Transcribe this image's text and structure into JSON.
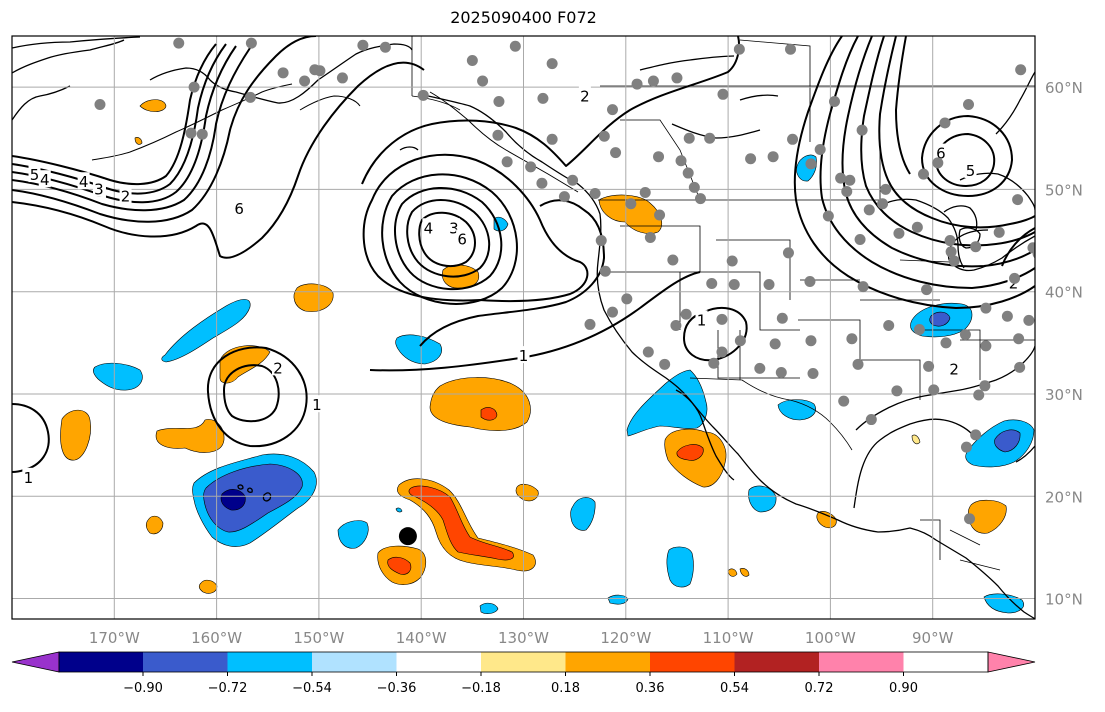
{
  "title": "2025090400 F072",
  "map": {
    "lon_range": [
      -180,
      -80
    ],
    "lat_range": [
      8,
      65
    ],
    "grid": true,
    "x_ticks": [
      {
        "lon": -170,
        "label": "170°W"
      },
      {
        "lon": -160,
        "label": "160°W"
      },
      {
        "lon": -150,
        "label": "150°W"
      },
      {
        "lon": -140,
        "label": "140°W"
      },
      {
        "lon": -130,
        "label": "130°W"
      },
      {
        "lon": -120,
        "label": "120°W"
      },
      {
        "lon": -110,
        "label": "110°W"
      },
      {
        "lon": -100,
        "label": "100°W"
      },
      {
        "lon": -90,
        "label": "90°W"
      }
    ],
    "y_ticks": [
      {
        "lat": 10,
        "label": "10°N"
      },
      {
        "lat": 20,
        "label": "20°N"
      },
      {
        "lat": 30,
        "label": "30°N"
      },
      {
        "lat": 40,
        "label": "40°N"
      },
      {
        "lat": 50,
        "label": "50°N"
      },
      {
        "lat": 60,
        "label": "60°N"
      }
    ],
    "contour_labels": [
      {
        "text": "5",
        "lon": -177.8,
        "lat": 51.5
      },
      {
        "text": "4",
        "lon": -176.8,
        "lat": 51.0
      },
      {
        "text": "3",
        "lon": -171.4,
        "lat": 49.9
      },
      {
        "text": "4",
        "lon": -173.0,
        "lat": 50.8
      },
      {
        "text": "3",
        "lon": -171.5,
        "lat": 50.1
      },
      {
        "text": "2",
        "lon": -168.9,
        "lat": 49.4
      },
      {
        "text": "6",
        "lon": -157.8,
        "lat": 48.2
      },
      {
        "text": "4",
        "lon": -139.3,
        "lat": 46.3
      },
      {
        "text": "3",
        "lon": -136.8,
        "lat": 46.3
      },
      {
        "text": "6",
        "lon": -136.0,
        "lat": 45.2
      },
      {
        "text": "2",
        "lon": -124.0,
        "lat": 59.2
      },
      {
        "text": "1",
        "lon": -130.0,
        "lat": 33.8
      },
      {
        "text": "1",
        "lon": -112.6,
        "lat": 37.3
      },
      {
        "text": "2",
        "lon": -154.0,
        "lat": 32.6
      },
      {
        "text": "1",
        "lon": -150.2,
        "lat": 29.0
      },
      {
        "text": "1",
        "lon": -178.4,
        "lat": 21.9
      },
      {
        "text": "6",
        "lon": -89.2,
        "lat": 53.6
      },
      {
        "text": "5",
        "lon": -86.3,
        "lat": 51.9
      },
      {
        "text": "2",
        "lon": -87.9,
        "lat": 32.5
      },
      {
        "text": "2",
        "lon": -82.1,
        "lat": 40.9
      }
    ],
    "storm_marker": {
      "lon": -141.3,
      "lat": 16.1
    },
    "station_color": "#808080",
    "stations": [
      [
        -163.7,
        64.3
      ],
      [
        -156.6,
        64.3
      ],
      [
        -153.5,
        61.4
      ],
      [
        -145.7,
        64.1
      ],
      [
        -143.5,
        63.9
      ],
      [
        -171.4,
        58.3
      ],
      [
        -162.2,
        60.0
      ],
      [
        -156.7,
        59.0
      ],
      [
        -151.4,
        60.6
      ],
      [
        -147.7,
        60.9
      ],
      [
        -149.9,
        61.6
      ],
      [
        -161.4,
        55.4
      ],
      [
        -162.5,
        55.5
      ],
      [
        -150.4,
        61.7
      ],
      [
        -135.0,
        62.6
      ],
      [
        -130.8,
        64.0
      ],
      [
        -127.2,
        62.3
      ],
      [
        -134.0,
        60.6
      ],
      [
        -139.8,
        59.2
      ],
      [
        -132.4,
        58.6
      ],
      [
        -118.9,
        60.3
      ],
      [
        -117.3,
        60.6
      ],
      [
        -115.0,
        60.9
      ],
      [
        -110.5,
        59.3
      ],
      [
        -108.9,
        63.7
      ],
      [
        -103.9,
        63.7
      ],
      [
        -121.3,
        57.8
      ],
      [
        -128.1,
        58.9
      ],
      [
        -132.5,
        55.3
      ],
      [
        -127.2,
        54.9
      ],
      [
        -122.1,
        55.2
      ],
      [
        -121.0,
        53.6
      ],
      [
        -113.8,
        55.0
      ],
      [
        -114.6,
        52.8
      ],
      [
        -113.9,
        51.6
      ],
      [
        -103.7,
        54.9
      ],
      [
        -101.9,
        52.5
      ],
      [
        -105.6,
        53.2
      ],
      [
        -107.8,
        53.0
      ],
      [
        -111.8,
        55.0
      ],
      [
        -113.3,
        50.2
      ],
      [
        -119.5,
        48.6
      ],
      [
        -118.1,
        49.7
      ],
      [
        -123.0,
        49.6
      ],
      [
        -126.0,
        49.3
      ],
      [
        -128.2,
        50.6
      ],
      [
        -129.3,
        52.2
      ],
      [
        -131.6,
        52.7
      ],
      [
        -125.2,
        50.9
      ],
      [
        -116.8,
        53.2
      ],
      [
        -112.7,
        49.1
      ],
      [
        -116.7,
        47.5
      ],
      [
        -117.6,
        45.3
      ],
      [
        -122.4,
        45.0
      ],
      [
        -122.0,
        42.0
      ],
      [
        -115.4,
        43.1
      ],
      [
        -109.6,
        43.0
      ],
      [
        -104.1,
        43.8
      ],
      [
        -97.1,
        45.1
      ],
      [
        -94.9,
        48.6
      ],
      [
        -93.3,
        45.7
      ],
      [
        -91.5,
        46.3
      ],
      [
        -88.3,
        45.0
      ],
      [
        -85.8,
        44.4
      ],
      [
        -83.5,
        45.8
      ],
      [
        -80.2,
        44.3
      ],
      [
        -79.7,
        43.7
      ],
      [
        -82.0,
        41.3
      ],
      [
        -87.9,
        43.0
      ],
      [
        -90.6,
        40.2
      ],
      [
        -96.8,
        40.5
      ],
      [
        -102.0,
        41.0
      ],
      [
        -106.0,
        40.7
      ],
      [
        -109.4,
        40.7
      ],
      [
        -111.6,
        40.8
      ],
      [
        -114.1,
        37.8
      ],
      [
        -119.9,
        39.3
      ],
      [
        -121.3,
        38.0
      ],
      [
        -123.5,
        36.8
      ],
      [
        -117.8,
        34.1
      ],
      [
        -115.1,
        36.7
      ],
      [
        -110.6,
        34.1
      ],
      [
        -108.8,
        35.2
      ],
      [
        -105.4,
        34.9
      ],
      [
        -101.9,
        35.2
      ],
      [
        -97.9,
        35.4
      ],
      [
        -94.3,
        36.7
      ],
      [
        -91.3,
        36.3
      ],
      [
        -88.7,
        35.0
      ],
      [
        -84.8,
        34.7
      ],
      [
        -81.6,
        35.4
      ],
      [
        -80.6,
        37.2
      ],
      [
        -84.8,
        38.4
      ],
      [
        -81.5,
        32.6
      ],
      [
        -84.9,
        30.8
      ],
      [
        -89.9,
        30.4
      ],
      [
        -93.5,
        30.3
      ],
      [
        -97.3,
        32.9
      ],
      [
        -98.7,
        29.3
      ],
      [
        -101.7,
        32.0
      ],
      [
        -104.8,
        32.1
      ],
      [
        -106.9,
        32.5
      ],
      [
        -111.4,
        33.0
      ],
      [
        -116.2,
        32.9
      ],
      [
        -110.6,
        37.3
      ],
      [
        -104.7,
        37.4
      ],
      [
        -90.4,
        32.7
      ],
      [
        -86.8,
        35.8
      ],
      [
        -96.0,
        27.5
      ],
      [
        -85.8,
        26.0
      ],
      [
        -86.7,
        24.8
      ],
      [
        -85.5,
        29.9
      ],
      [
        -88.2,
        43.9
      ],
      [
        -81.4,
        61.7
      ],
      [
        -96.9,
        55.8
      ],
      [
        -99.6,
        58.6
      ],
      [
        -101.0,
        53.9
      ],
      [
        -94.6,
        50.0
      ],
      [
        -98.4,
        49.8
      ],
      [
        -90.9,
        51.5
      ],
      [
        -89.5,
        52.6
      ],
      [
        -86.4,
        17.8
      ],
      [
        -88.8,
        56.5
      ],
      [
        -86.5,
        58.3
      ],
      [
        -81.7,
        49.0
      ],
      [
        -98.1,
        50.9
      ],
      [
        -96.2,
        48.0
      ],
      [
        -100.2,
        47.4
      ],
      [
        -99.0,
        51.1
      ],
      [
        -82.7,
        37.6
      ]
    ]
  },
  "colorbar": {
    "colors": [
      "#9932cc",
      "#00008b",
      "#3a5bcc",
      "#00bfff",
      "#b0e2ff",
      "#ffffff",
      "#ffe88a",
      "#ffa500",
      "#ff4500",
      "#b22222",
      "#ff82ab"
    ],
    "ticks": [
      "−0.90",
      "−0.72",
      "−0.54",
      "−0.36",
      "−0.18",
      "0.18",
      "0.36",
      "0.54",
      "0.72",
      "0.90"
    ]
  }
}
